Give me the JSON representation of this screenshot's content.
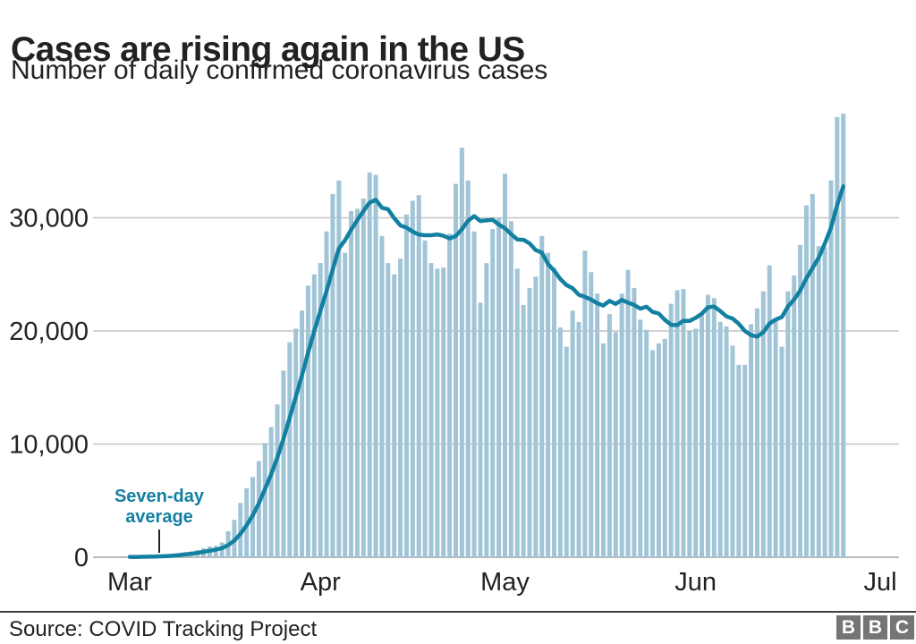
{
  "chart_data": {
    "type": "bar",
    "title": "Cases are rising again in the US",
    "subtitle": "Number of daily confirmed coronavirus cases",
    "x_ticks": [
      {
        "label": "Mar",
        "day": 0
      },
      {
        "label": "Apr",
        "day": 31
      },
      {
        "label": "May",
        "day": 61
      },
      {
        "label": "Jun",
        "day": 92
      },
      {
        "label": "Jul",
        "day": 122
      }
    ],
    "y_ticks": [
      {
        "label": "0",
        "value": 0
      },
      {
        "label": "10,000",
        "value": 10000
      },
      {
        "label": "20,000",
        "value": 20000
      },
      {
        "label": "30,000",
        "value": 30000
      }
    ],
    "ylim": [
      0,
      40000
    ],
    "grid": true,
    "series": [
      {
        "name": "daily-confirmed-cases",
        "type": "bar",
        "color": "#a1c5d7",
        "values": [
          30,
          25,
          60,
          80,
          120,
          160,
          270,
          290,
          350,
          450,
          510,
          640,
          790,
          950,
          1000,
          1300,
          2300,
          3300,
          4800,
          6100,
          7100,
          8500,
          10100,
          11500,
          13500,
          16500,
          19000,
          20200,
          21800,
          24000,
          25000,
          26000,
          28800,
          32100,
          33300,
          26900,
          30600,
          30800,
          31700,
          34000,
          33800,
          28400,
          26000,
          25000,
          26400,
          30300,
          31500,
          32000,
          28000,
          26000,
          25500,
          25600,
          28600,
          33000,
          36200,
          33300,
          28800,
          22500,
          26000,
          29000,
          30000,
          33900,
          29700,
          25500,
          22300,
          23800,
          24800,
          28400,
          26900,
          25600,
          20300,
          18600,
          21800,
          20800,
          27100,
          25200,
          23300,
          18900,
          21500,
          19900,
          23300,
          25400,
          23800,
          21000,
          20100,
          18300,
          18900,
          19300,
          22400,
          23600,
          23700,
          20000,
          20200,
          21500,
          23200,
          22900,
          20800,
          20400,
          18700,
          17000,
          17000,
          20600,
          22000,
          23500,
          25800,
          21100,
          18600,
          23500,
          24900,
          27600,
          31100,
          32100,
          27500,
          27400,
          33300,
          38900,
          39200
        ]
      },
      {
        "name": "seven-day-average",
        "type": "line",
        "color": "#1380a1",
        "derived_from": "trailing 7-day mean of daily-confirmed-cases"
      }
    ],
    "annotation": {
      "text_line1": "Seven-day",
      "text_line2": "average",
      "color": "#1380a1"
    }
  },
  "footer": {
    "source": "Source: COVID Tracking Project",
    "logo_letters": [
      "B",
      "B",
      "C"
    ]
  }
}
